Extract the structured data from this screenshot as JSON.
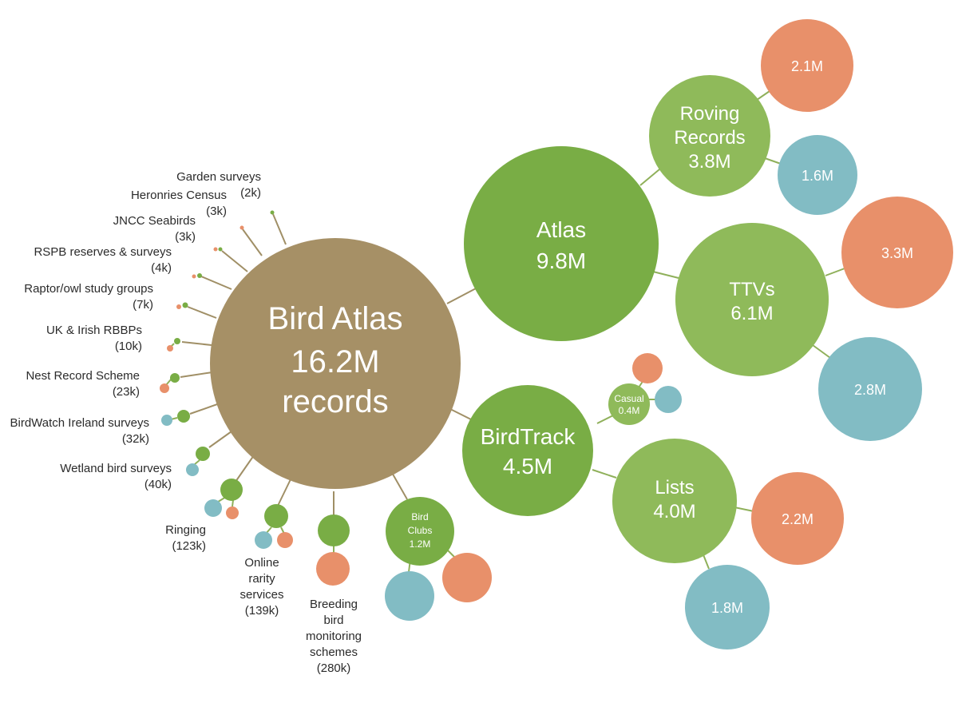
{
  "colors": {
    "root": "#a69066",
    "green_dark": "#79ad45",
    "green_light": "#8fba5a",
    "orange": "#e8906a",
    "teal": "#82bcc4",
    "link": "#8fb05a",
    "text_dark": "#2b2b2b"
  },
  "root": {
    "lines": [
      "Bird Atlas",
      "16.2M",
      "records"
    ]
  },
  "atlas": {
    "lines": [
      "Atlas",
      "9.8M"
    ],
    "roving": {
      "lines": [
        "Roving",
        "Records",
        "3.8M"
      ],
      "orange": "2.1M",
      "teal": "1.6M"
    },
    "ttvs": {
      "lines": [
        "TTVs",
        "6.1M"
      ],
      "orange": "3.3M",
      "teal": "2.8M"
    }
  },
  "birdtrack": {
    "lines": [
      "BirdTrack",
      "4.5M"
    ],
    "casual": {
      "lines": [
        "Casual",
        "0.4M"
      ]
    },
    "lists": {
      "lines": [
        "Lists",
        "4.0M"
      ],
      "orange": "2.2M",
      "teal": "1.8M"
    }
  },
  "bird_clubs": {
    "lines": [
      "Bird",
      "Clubs",
      "1.2M"
    ]
  },
  "sources": [
    {
      "lines": [
        "Garden surveys",
        "(2k)"
      ]
    },
    {
      "lines": [
        "Heronries Census",
        "(3k)"
      ]
    },
    {
      "lines": [
        "JNCC Seabirds",
        "(3k)"
      ]
    },
    {
      "lines": [
        "RSPB reserves & surveys",
        "(4k)"
      ]
    },
    {
      "lines": [
        "Raptor/owl study groups",
        "(7k)"
      ]
    },
    {
      "lines": [
        "UK & Irish RBBPs",
        "(10k)"
      ]
    },
    {
      "lines": [
        "Nest Record Scheme",
        "(23k)"
      ]
    },
    {
      "lines": [
        "BirdWatch Ireland surveys",
        "(32k)"
      ]
    },
    {
      "lines": [
        "Wetland bird surveys",
        "(40k)"
      ]
    },
    {
      "lines": [
        "Ringing",
        "(123k)"
      ]
    },
    {
      "lines": [
        "Online",
        "rarity",
        "services",
        "(139k)"
      ]
    },
    {
      "lines": [
        "Breeding",
        "bird",
        "monitoring",
        "schemes",
        "(280k)"
      ]
    }
  ]
}
